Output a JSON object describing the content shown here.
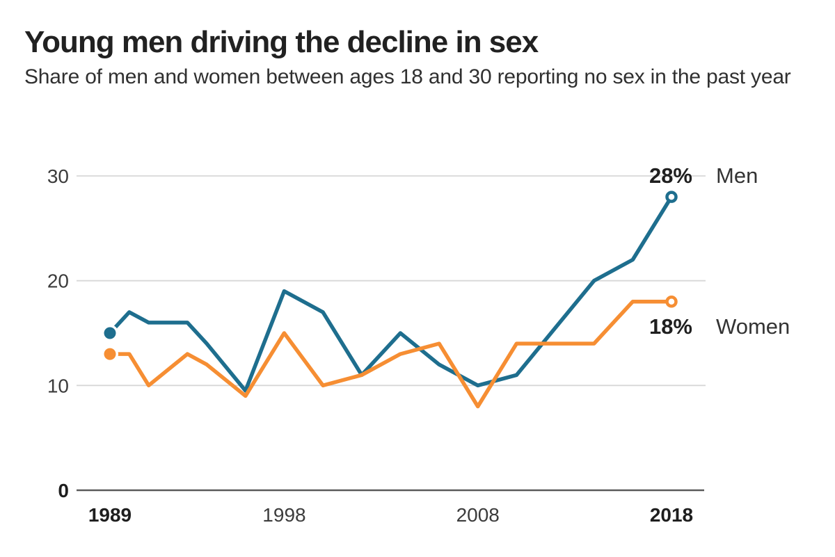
{
  "chart_data": {
    "type": "line",
    "title": "Young men driving the decline in sex",
    "subtitle": "Share of men and women between ages 18 and 30 reporting no sex in the past year",
    "x": [
      1989,
      1990,
      1991,
      1993,
      1994,
      1996,
      1998,
      2000,
      2002,
      2004,
      2006,
      2008,
      2010,
      2012,
      2014,
      2016,
      2018
    ],
    "series": [
      {
        "name": "Men",
        "color": "#1e6e8e",
        "end_label": "28%",
        "values": [
          15,
          17,
          16,
          16,
          14,
          9.5,
          19,
          17,
          11,
          15,
          12,
          10,
          11,
          15.5,
          20,
          22,
          28
        ]
      },
      {
        "name": "Women",
        "color": "#f68e33",
        "end_label": "18%",
        "values": [
          13,
          13,
          10,
          13,
          12,
          9,
          15,
          10,
          11,
          13,
          14,
          8,
          14,
          14,
          14,
          18,
          18
        ]
      }
    ],
    "xlim": [
      1989,
      2018
    ],
    "ylim": [
      0,
      30
    ],
    "x_ticks": [
      {
        "value": 1989,
        "label": "1989",
        "bold": true
      },
      {
        "value": 1998,
        "label": "1998",
        "bold": false
      },
      {
        "value": 2008,
        "label": "2008",
        "bold": false
      },
      {
        "value": 2018,
        "label": "2018",
        "bold": true
      }
    ],
    "y_ticks": [
      {
        "value": 0,
        "label": "0",
        "bold": true
      },
      {
        "value": 10,
        "label": "10",
        "bold": false
      },
      {
        "value": 20,
        "label": "20",
        "bold": false
      },
      {
        "value": 30,
        "label": "30",
        "bold": false
      }
    ],
    "grid": "horizontal",
    "legend_position": "line-end-labels",
    "marker_start": "filled-dot",
    "marker_end": "open-dot"
  }
}
